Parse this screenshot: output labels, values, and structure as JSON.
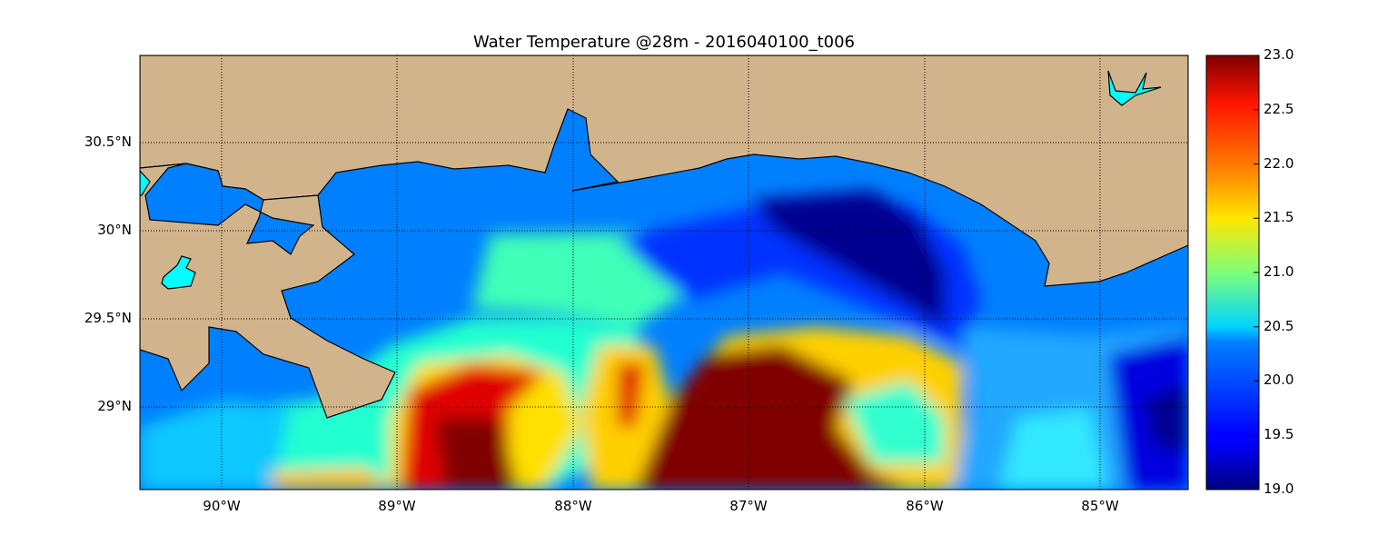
{
  "title": "Water Temperature @28m - 2016040100_t006",
  "map": {
    "type": "heatmap",
    "variable": "Water Temperature",
    "depth": "28m",
    "run": "2016040100_t006",
    "lon_range": [
      -90.47,
      -84.49
    ],
    "lat_range": [
      28.54,
      31.0
    ],
    "grid": true,
    "land_color": "#d2b48c",
    "lake_color": "#00ffff",
    "colormap": "jet",
    "lon_ticks": [
      "90°W",
      "89°W",
      "88°W",
      "87°W",
      "86°W",
      "85°W"
    ],
    "lon_values": [
      -90,
      -89,
      -88,
      -87,
      -86,
      -85
    ],
    "lat_ticks": [
      "30.5°N",
      "30°N",
      "29.5°N",
      "29°N"
    ],
    "lat_values": [
      30.5,
      30,
      29.5,
      29
    ]
  },
  "colorbar": {
    "range": [
      19.0,
      23.0
    ],
    "ticks": [
      "23.0",
      "22.5",
      "22.0",
      "21.5",
      "21.0",
      "20.5",
      "20.0",
      "19.5",
      "19.0"
    ],
    "tick_values": [
      23.0,
      22.5,
      22.0,
      21.5,
      21.0,
      20.5,
      20.0,
      19.5,
      19.0
    ]
  }
}
